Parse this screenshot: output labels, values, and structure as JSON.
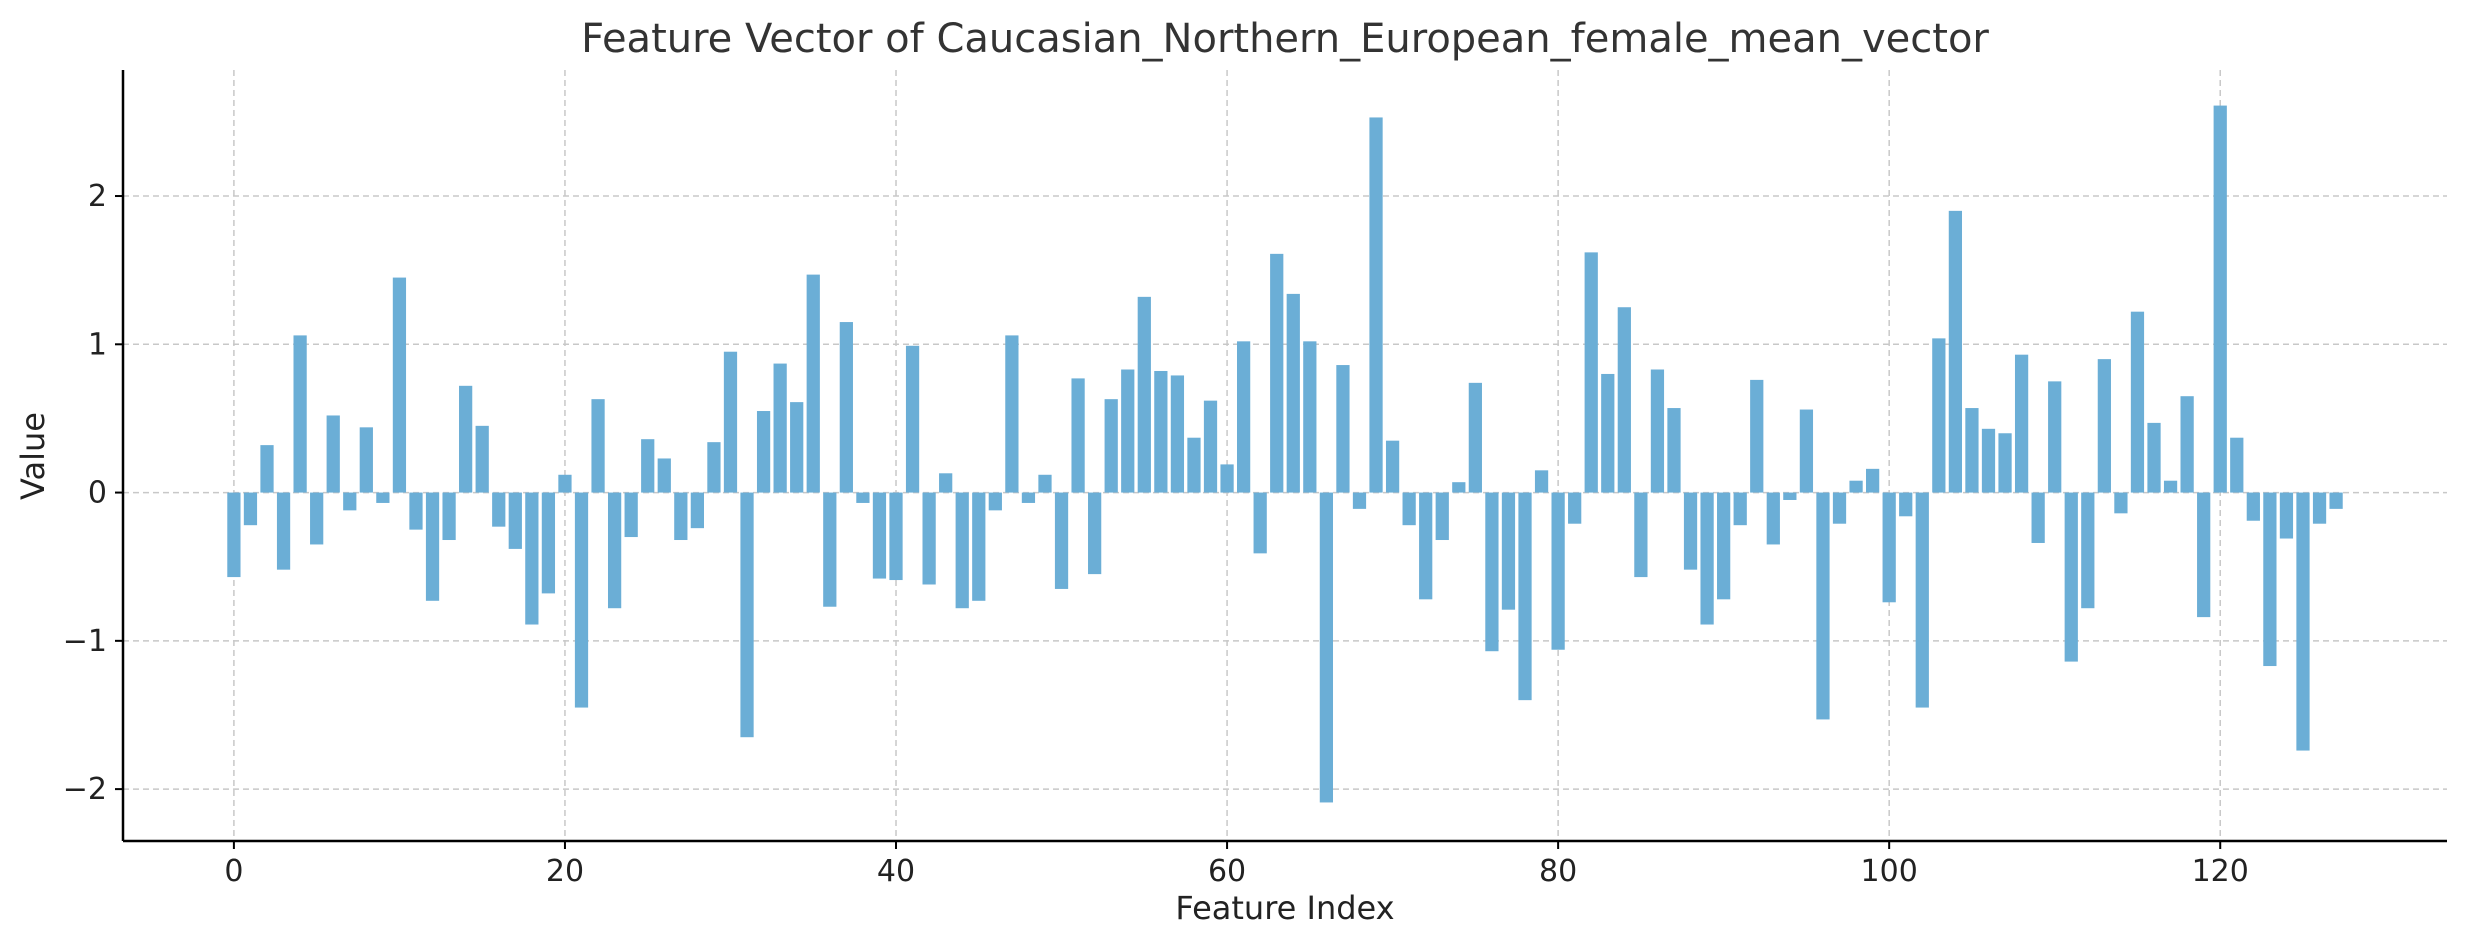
{
  "chart_data": {
    "type": "bar",
    "title": "Feature Vector of Caucasian_Northern_European_female_mean_vector",
    "xlabel": "Feature Index",
    "ylabel": "Value",
    "bar_color": "#6baed6",
    "grid": true,
    "xlim": [
      -6.7,
      133.7
    ],
    "ylim": [
      -2.35,
      2.85
    ],
    "xticks": [
      0,
      20,
      40,
      60,
      80,
      100,
      120
    ],
    "xtick_labels": [
      "0",
      "20",
      "40",
      "60",
      "80",
      "100",
      "120"
    ],
    "yticks": [
      -2,
      -1,
      0,
      1,
      2
    ],
    "ytick_labels": [
      "−2",
      "−1",
      "0",
      "1",
      "2"
    ],
    "x": [
      0,
      1,
      2,
      3,
      4,
      5,
      6,
      7,
      8,
      9,
      10,
      11,
      12,
      13,
      14,
      15,
      16,
      17,
      18,
      19,
      20,
      21,
      22,
      23,
      24,
      25,
      26,
      27,
      28,
      29,
      30,
      31,
      32,
      33,
      34,
      35,
      36,
      37,
      38,
      39,
      40,
      41,
      42,
      43,
      44,
      45,
      46,
      47,
      48,
      49,
      50,
      51,
      52,
      53,
      54,
      55,
      56,
      57,
      58,
      59,
      60,
      61,
      62,
      63,
      64,
      65,
      66,
      67,
      68,
      69,
      70,
      71,
      72,
      73,
      74,
      75,
      76,
      77,
      78,
      79,
      80,
      81,
      82,
      83,
      84,
      85,
      86,
      87,
      88,
      89,
      90,
      91,
      92,
      93,
      94,
      95,
      96,
      97,
      98,
      99,
      100,
      101,
      102,
      103,
      104,
      105,
      106,
      107,
      108,
      109,
      110,
      111,
      112,
      113,
      114,
      115,
      116,
      117,
      118,
      119,
      120,
      121,
      122,
      123,
      124,
      125,
      126,
      127
    ],
    "values": [
      -0.57,
      -0.22,
      0.32,
      -0.52,
      1.06,
      -0.35,
      0.52,
      -0.12,
      0.44,
      -0.07,
      1.45,
      -0.25,
      -0.73,
      -0.32,
      0.72,
      0.45,
      -0.23,
      -0.38,
      -0.89,
      -0.68,
      0.12,
      -1.45,
      0.63,
      -0.78,
      -0.3,
      0.36,
      0.23,
      -0.32,
      -0.24,
      0.34,
      0.95,
      -1.65,
      0.55,
      0.87,
      0.61,
      1.47,
      -0.77,
      1.15,
      -0.07,
      -0.58,
      -0.59,
      0.99,
      -0.62,
      0.13,
      -0.78,
      -0.73,
      -0.12,
      1.06,
      -0.07,
      0.12,
      -0.65,
      0.77,
      -0.55,
      0.63,
      0.83,
      1.32,
      0.82,
      0.79,
      0.37,
      0.62,
      0.19,
      1.02,
      -0.41,
      1.61,
      1.34,
      1.02,
      -2.09,
      0.86,
      -0.11,
      2.53,
      0.35,
      -0.22,
      -0.72,
      -0.32,
      0.07,
      0.74,
      -1.07,
      -0.79,
      -1.4,
      0.15,
      -1.06,
      -0.21,
      1.62,
      0.8,
      1.25,
      -0.57,
      0.83,
      0.57,
      -0.52,
      -0.89,
      -0.72,
      -0.22,
      0.76,
      -0.35,
      -0.05,
      0.56,
      -1.53,
      -0.21,
      0.08,
      0.16,
      -0.74,
      -0.16,
      -1.45,
      1.04,
      1.9,
      0.57,
      0.43,
      0.4,
      0.93,
      -0.34,
      0.75,
      -1.14,
      -0.78,
      0.9,
      -0.14,
      1.22,
      0.47,
      0.08,
      0.65,
      -0.84,
      2.61,
      0.37,
      -0.19,
      -1.17,
      -0.31,
      -1.74,
      -0.21,
      -0.11
    ]
  }
}
